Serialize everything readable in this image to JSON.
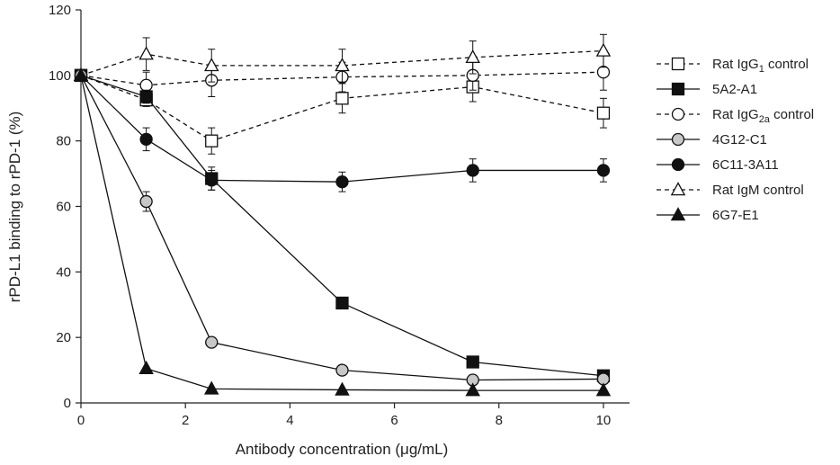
{
  "chart_data": {
    "type": "line",
    "xlabel": "Antibody concentration (μg/mL)",
    "ylabel": "rPD-L1 binding to rPD-1 (%)",
    "xlim": [
      0,
      10.5
    ],
    "ylim": [
      0,
      120
    ],
    "xticks": [
      0,
      2,
      4,
      6,
      8,
      10
    ],
    "yticks": [
      0,
      20,
      40,
      60,
      80,
      100,
      120
    ],
    "grid": false,
    "legend_position": "right",
    "series": [
      {
        "name": "Rat IgG1 control",
        "name_main": "Rat IgG",
        "name_sub": "1",
        "name_rest": " control",
        "line": "dashed",
        "marker": "square",
        "fill": "#ffffff",
        "x": [
          0,
          1.25,
          2.5,
          5,
          7.5,
          10
        ],
        "y": [
          100,
          92.5,
          80,
          93,
          96.5,
          88.5
        ],
        "err": [
          0,
          2,
          4,
          4.5,
          4.5,
          4.5
        ]
      },
      {
        "name": "5A2-A1",
        "name_main": "5A2-A1",
        "name_sub": "",
        "name_rest": "",
        "line": "solid",
        "marker": "square",
        "fill": "#111111",
        "x": [
          0,
          1.25,
          2.5,
          5,
          7.5,
          10
        ],
        "y": [
          100,
          93.5,
          68.5,
          30.5,
          12.5,
          8.3
        ],
        "err": [
          0,
          2,
          3.5,
          0,
          0,
          0
        ]
      },
      {
        "name": "Rat IgG2a control",
        "name_main": "Rat IgG",
        "name_sub": "2a",
        "name_rest": " control",
        "line": "dashed",
        "marker": "circle",
        "fill": "#ffffff",
        "x": [
          0,
          1.25,
          2.5,
          5,
          7.5,
          10
        ],
        "y": [
          100,
          97,
          98.5,
          99.5,
          100,
          101
        ],
        "err": [
          0,
          4,
          5,
          4.5,
          4.5,
          5.5
        ]
      },
      {
        "name": "4G12-C1",
        "name_main": "4G12-C1",
        "name_sub": "",
        "name_rest": "",
        "line": "solid",
        "marker": "circle",
        "fill": "#c8c8c8",
        "x": [
          0,
          1.25,
          2.5,
          5,
          7.5,
          10
        ],
        "y": [
          100,
          61.5,
          18.5,
          10,
          7,
          7.3
        ],
        "err": [
          0,
          3,
          0,
          0,
          0,
          0
        ]
      },
      {
        "name": "6C11-3A11",
        "name_main": "6C11-3A11",
        "name_sub": "",
        "name_rest": "",
        "line": "solid",
        "marker": "circle",
        "fill": "#111111",
        "x": [
          0,
          1.25,
          2.5,
          5,
          7.5,
          10
        ],
        "y": [
          100,
          80.5,
          68,
          67.5,
          71,
          71
        ],
        "err": [
          0,
          3.5,
          3,
          3,
          3.5,
          3.5
        ]
      },
      {
        "name": "Rat IgM control",
        "name_main": "Rat IgM control",
        "name_sub": "",
        "name_rest": "",
        "line": "dashed",
        "marker": "triangle",
        "fill": "#ffffff",
        "x": [
          0,
          1.25,
          2.5,
          5,
          7.5,
          10
        ],
        "y": [
          100,
          106.5,
          103,
          103,
          105.5,
          107.5
        ],
        "err": [
          0,
          5,
          5,
          5,
          5,
          5
        ]
      },
      {
        "name": "6G7-E1",
        "name_main": "6G7-E1",
        "name_sub": "",
        "name_rest": "",
        "line": "solid",
        "marker": "triangle",
        "fill": "#111111",
        "x": [
          0,
          1.25,
          2.5,
          5,
          7.5,
          10
        ],
        "y": [
          100,
          10.5,
          4.3,
          4,
          3.8,
          3.8
        ],
        "err": [
          0,
          0,
          0,
          0,
          0,
          0
        ]
      }
    ]
  }
}
